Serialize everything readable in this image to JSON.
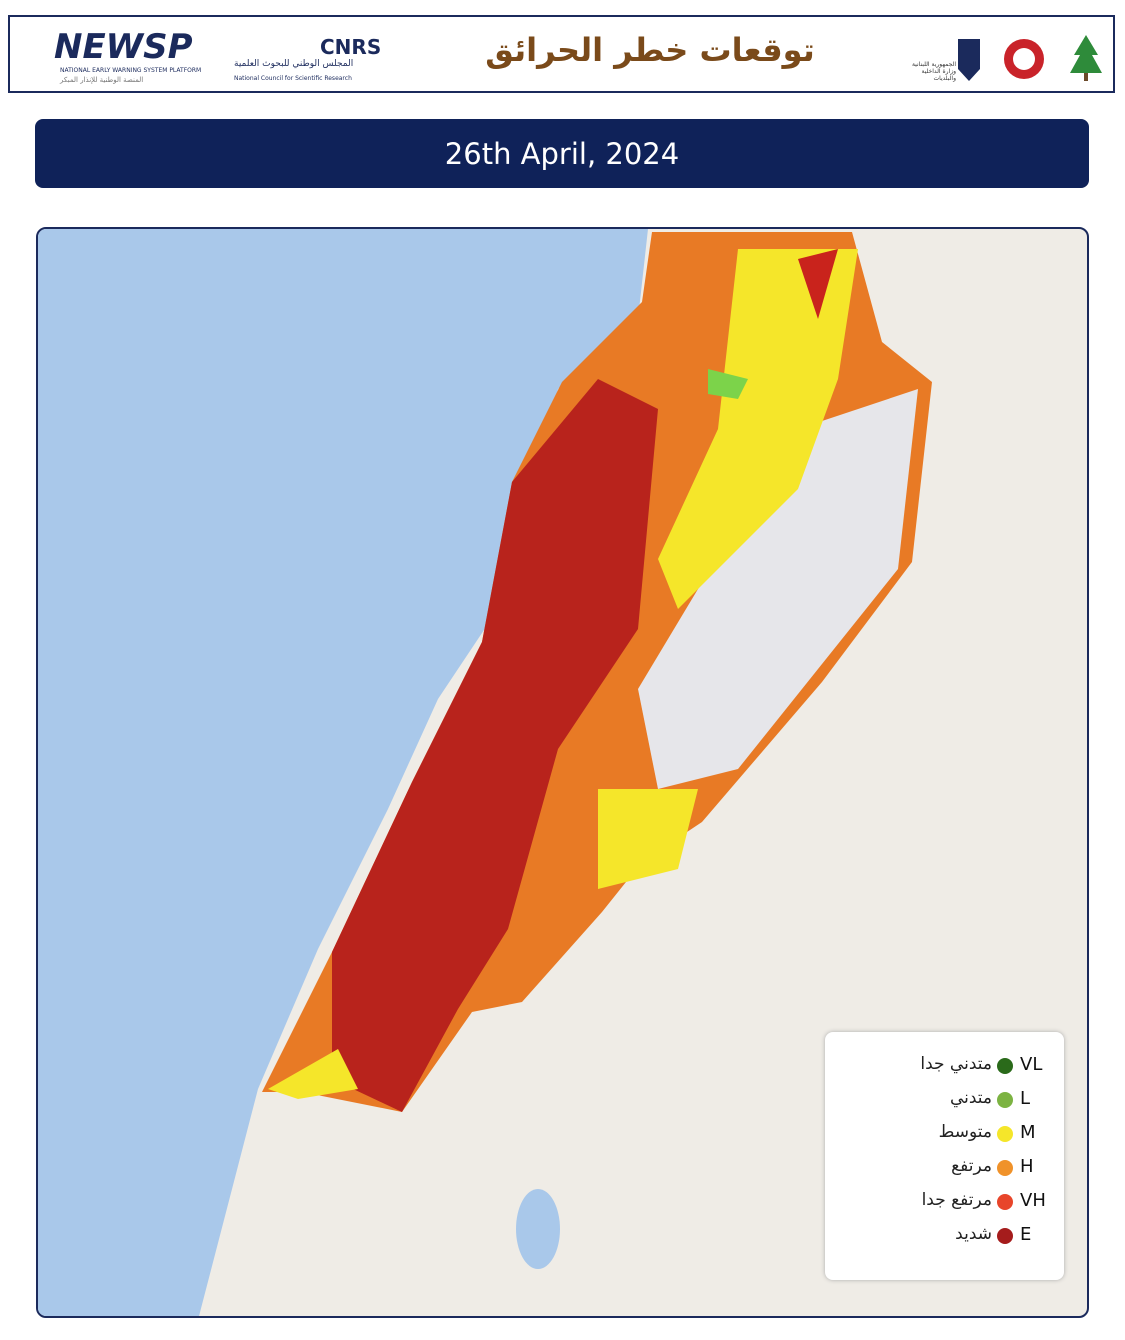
{
  "header": {
    "newsp": {
      "name": "NEWSP",
      "subtitle": "NATIONAL EARLY WARNING SYSTEM PLATFORM",
      "subtitle_ar": "المنصة الوطنية للإنذار المبكر"
    },
    "cnrs": {
      "name": "CNRS",
      "name_ar": "المجلس الوطني للبحوث العلمية",
      "name_en": "National Council for Scientific Research"
    },
    "title": "توقعات خطر الحرائق",
    "ministry": "الجمهورية اللبنانية وزارة الداخلية والبلديات"
  },
  "date": "26th April, 2024",
  "legend": {
    "items": [
      {
        "code": "VL",
        "label": "متدني جدا",
        "color": "#2a6a1a"
      },
      {
        "code": "L",
        "label": "متدني",
        "color": "#7cb342"
      },
      {
        "code": "M",
        "label": "متوسط",
        "color": "#f5e62a"
      },
      {
        "code": "H",
        "label": "مرتفع",
        "color": "#f0922a"
      },
      {
        "code": "VH",
        "label": "مرتفع جدا",
        "color": "#e8452a"
      },
      {
        "code": "E",
        "label": "شديد",
        "color": "#a51c1c"
      }
    ]
  }
}
